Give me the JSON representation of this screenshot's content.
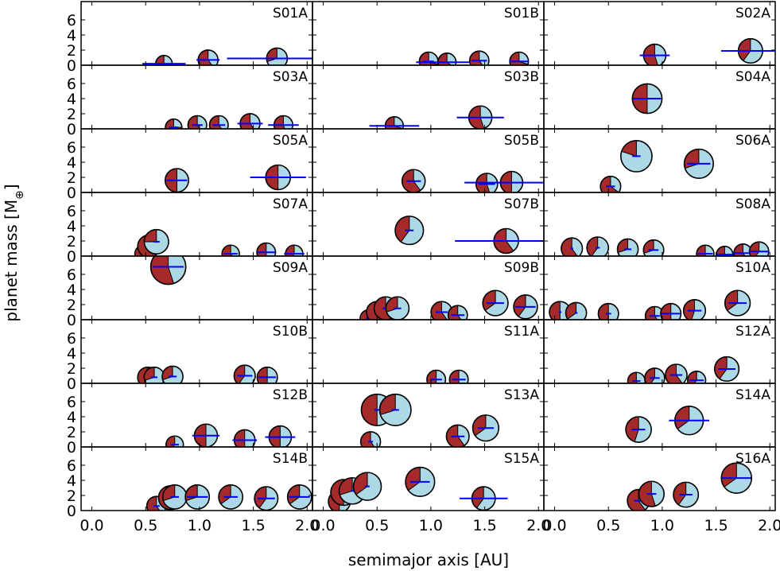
{
  "chart_data": {
    "type": "scatter",
    "title": "",
    "xlabel": "semimajor axis [AU]",
    "ylabel": "planet mass [M",
    "ylabel_symbol": "⊕",
    "ylabel_close": "]",
    "xlim": [
      -0.1,
      2.05
    ],
    "ylim": [
      0,
      8
    ],
    "xticks": [
      0.0,
      0.5,
      1.0,
      1.5,
      2.0
    ],
    "xtick_labels": [
      "0.0",
      "0.5",
      "1.0",
      "1.5",
      "2.0"
    ],
    "yticks": [
      0,
      2,
      4,
      6
    ],
    "ytick_labels": [
      "0",
      "2",
      "4",
      "6"
    ],
    "grid": false,
    "colors": {
      "rock": "#a52a2a",
      "ice": "#add8e6",
      "ecc_line": "#0000ff",
      "outline": "#000000"
    },
    "panels": [
      {
        "label": "S01A",
        "planets": [
          {
            "a": 0.67,
            "m": 0.2,
            "f": 0.75,
            "e": 0.3
          },
          {
            "a": 1.08,
            "m": 0.7,
            "f": 0.6,
            "e": 0.1
          },
          {
            "a": 1.72,
            "m": 0.9,
            "f": 0.3,
            "e": 0.27
          }
        ]
      },
      {
        "label": "S01B",
        "planets": [
          {
            "a": 0.98,
            "m": 0.5,
            "f": 0.7,
            "e": 0.05
          },
          {
            "a": 1.15,
            "m": 0.4,
            "f": 0.65,
            "e": 0.25
          },
          {
            "a": 1.45,
            "m": 0.6,
            "f": 0.6,
            "e": 0.05
          },
          {
            "a": 1.82,
            "m": 0.5,
            "f": 0.7,
            "e": 0.05
          }
        ]
      },
      {
        "label": "S02A",
        "planets": [
          {
            "a": 0.93,
            "m": 1.3,
            "f": 0.55,
            "e": 0.15
          },
          {
            "a": 1.82,
            "m": 1.9,
            "f": 0.4,
            "e": 0.15
          }
        ]
      },
      {
        "label": "S03A",
        "planets": [
          {
            "a": 0.76,
            "m": 0.2,
            "f": 0.75,
            "e": 0.05
          },
          {
            "a": 0.98,
            "m": 0.5,
            "f": 0.6,
            "e": 0.05
          },
          {
            "a": 1.18,
            "m": 0.5,
            "f": 0.6,
            "e": 0.05
          },
          {
            "a": 1.47,
            "m": 0.7,
            "f": 0.6,
            "e": 0.08
          },
          {
            "a": 1.78,
            "m": 0.5,
            "f": 0.55,
            "e": 0.08
          }
        ]
      },
      {
        "label": "S03B",
        "planets": [
          {
            "a": 0.66,
            "m": 0.4,
            "f": 0.7,
            "e": 0.35
          },
          {
            "a": 1.46,
            "m": 1.5,
            "f": 0.55,
            "e": 0.15
          }
        ]
      },
      {
        "label": "S04A",
        "planets": [
          {
            "a": 0.86,
            "m": 4.0,
            "f": 0.5,
            "e": 0.15
          }
        ]
      },
      {
        "label": "S05A",
        "planets": [
          {
            "a": 0.79,
            "m": 1.6,
            "f": 0.5,
            "e": 0.12
          },
          {
            "a": 1.73,
            "m": 2.0,
            "f": 0.5,
            "e": 0.15
          }
        ]
      },
      {
        "label": "S05B",
        "planets": [
          {
            "a": 0.84,
            "m": 1.5,
            "f": 0.6,
            "e": 0.08
          },
          {
            "a": 1.52,
            "m": 1.1,
            "f": 0.55,
            "e": 0.05
          },
          {
            "a": 1.75,
            "m": 1.3,
            "f": 0.5,
            "e": 0.25
          }
        ]
      },
      {
        "label": "S06A",
        "planets": [
          {
            "a": 0.52,
            "m": 0.8,
            "f": 0.65,
            "e": 0.08
          },
          {
            "a": 0.76,
            "m": 4.8,
            "f": 0.2,
            "e": 0.05
          },
          {
            "a": 1.34,
            "m": 3.8,
            "f": 0.3,
            "e": 0.08
          }
        ]
      },
      {
        "label": "S07A",
        "planets": [
          {
            "a": 0.48,
            "m": 0.3,
            "f": 0.7,
            "e": 0.05
          },
          {
            "a": 0.53,
            "m": 1.3,
            "f": 0.6,
            "e": 0.05
          },
          {
            "a": 0.6,
            "m": 1.9,
            "f": 0.25,
            "e": 0.05
          },
          {
            "a": 1.29,
            "m": 0.3,
            "f": 0.6,
            "e": 0.05
          },
          {
            "a": 1.62,
            "m": 0.5,
            "f": 0.5,
            "e": 0.05
          },
          {
            "a": 1.88,
            "m": 0.3,
            "f": 0.4,
            "e": 0.05
          }
        ]
      },
      {
        "label": "S07B",
        "planets": [
          {
            "a": 0.8,
            "m": 3.4,
            "f": 0.4,
            "e": 0.05
          },
          {
            "a": 1.7,
            "m": 2.0,
            "f": 0.6,
            "e": 0.28
          }
        ]
      },
      {
        "label": "S08A",
        "planets": [
          {
            "a": 0.16,
            "m": 1.0,
            "f": 0.6,
            "e": 0.05
          },
          {
            "a": 0.4,
            "m": 1.1,
            "f": 0.4,
            "e": 0.05
          },
          {
            "a": 0.68,
            "m": 0.9,
            "f": 0.3,
            "e": 0.05
          },
          {
            "a": 0.92,
            "m": 0.8,
            "f": 0.3,
            "e": 0.05
          },
          {
            "a": 1.4,
            "m": 0.3,
            "f": 0.5,
            "e": 0.05
          },
          {
            "a": 1.58,
            "m": 0.2,
            "f": 0.4,
            "e": 0.05
          },
          {
            "a": 1.75,
            "m": 0.4,
            "f": 0.6,
            "e": 0.05
          },
          {
            "a": 1.9,
            "m": 0.6,
            "f": 0.4,
            "e": 0.05
          }
        ]
      },
      {
        "label": "S09A",
        "planets": [
          {
            "a": 0.71,
            "m": 7.0,
            "f": 0.55,
            "e": 0.2
          }
        ]
      },
      {
        "label": "S09B",
        "planets": [
          {
            "a": 0.42,
            "m": 0.2,
            "f": 0.7,
            "e": 0.05
          },
          {
            "a": 0.5,
            "m": 1.0,
            "f": 0.6,
            "e": 0.05
          },
          {
            "a": 0.58,
            "m": 1.5,
            "f": 0.6,
            "e": 0.05
          },
          {
            "a": 0.69,
            "m": 1.5,
            "f": 0.3,
            "e": 0.05
          },
          {
            "a": 1.1,
            "m": 1.0,
            "f": 0.6,
            "e": 0.05
          },
          {
            "a": 1.25,
            "m": 0.6,
            "f": 0.6,
            "e": 0.05
          },
          {
            "a": 1.6,
            "m": 2.2,
            "f": 0.35,
            "e": 0.05
          },
          {
            "a": 1.88,
            "m": 1.7,
            "f": 0.4,
            "e": 0.05
          }
        ]
      },
      {
        "label": "S10A",
        "planets": [
          {
            "a": 0.05,
            "m": 1.0,
            "f": 0.5,
            "e": 0.05
          },
          {
            "a": 0.2,
            "m": 0.9,
            "f": 0.35,
            "e": 0.05
          },
          {
            "a": 0.5,
            "m": 0.8,
            "f": 0.5,
            "e": 0.05
          },
          {
            "a": 0.93,
            "m": 0.5,
            "f": 0.6,
            "e": 0.05
          },
          {
            "a": 1.08,
            "m": 0.8,
            "f": 0.5,
            "e": 0.08
          },
          {
            "a": 1.3,
            "m": 1.2,
            "f": 0.45,
            "e": 0.05
          },
          {
            "a": 1.7,
            "m": 2.2,
            "f": 0.35,
            "e": 0.05
          }
        ]
      },
      {
        "label": "S10B",
        "planets": [
          {
            "a": 0.52,
            "m": 0.8,
            "f": 0.6,
            "e": 0.05
          },
          {
            "a": 0.58,
            "m": 0.8,
            "f": 0.3,
            "e": 0.05
          },
          {
            "a": 0.75,
            "m": 0.9,
            "f": 0.3,
            "e": 0.05
          },
          {
            "a": 1.42,
            "m": 1.0,
            "f": 0.4,
            "e": 0.05
          },
          {
            "a": 1.63,
            "m": 0.8,
            "f": 0.5,
            "e": 0.05
          }
        ]
      },
      {
        "label": "S11A",
        "planets": [
          {
            "a": 1.05,
            "m": 0.5,
            "f": 0.5,
            "e": 0.05
          },
          {
            "a": 1.26,
            "m": 0.5,
            "f": 0.5,
            "e": 0.05
          }
        ]
      },
      {
        "label": "S12A",
        "planets": [
          {
            "a": 0.76,
            "m": 0.3,
            "f": 0.55,
            "e": 0.05
          },
          {
            "a": 0.93,
            "m": 0.7,
            "f": 0.4,
            "e": 0.05
          },
          {
            "a": 1.13,
            "m": 1.1,
            "f": 0.6,
            "e": 0.05
          },
          {
            "a": 1.32,
            "m": 0.4,
            "f": 0.4,
            "e": 0.05
          },
          {
            "a": 1.6,
            "m": 1.9,
            "f": 0.4,
            "e": 0.05
          }
        ]
      },
      {
        "label": "S12B",
        "planets": [
          {
            "a": 0.77,
            "m": 0.3,
            "f": 0.4,
            "e": 0.05
          },
          {
            "a": 1.06,
            "m": 1.5,
            "f": 0.5,
            "e": 0.12
          },
          {
            "a": 1.42,
            "m": 0.9,
            "f": 0.5,
            "e": 0.08
          },
          {
            "a": 1.75,
            "m": 1.3,
            "f": 0.5,
            "e": 0.08
          }
        ]
      },
      {
        "label": "S13A",
        "planets": [
          {
            "a": 0.44,
            "m": 0.7,
            "f": 0.6,
            "e": 0.05
          },
          {
            "a": 0.5,
            "m": 4.9,
            "f": 0.5,
            "e": 0.05
          },
          {
            "a": 0.67,
            "m": 4.9,
            "f": 0.3,
            "e": 0.05
          },
          {
            "a": 1.25,
            "m": 1.4,
            "f": 0.6,
            "e": 0.05
          },
          {
            "a": 1.51,
            "m": 2.5,
            "f": 0.35,
            "e": 0.05
          }
        ]
      },
      {
        "label": "S14A",
        "planets": [
          {
            "a": 0.78,
            "m": 2.3,
            "f": 0.45,
            "e": 0.08
          },
          {
            "a": 1.25,
            "m": 3.5,
            "f": 0.35,
            "e": 0.15
          }
        ]
      },
      {
        "label": "S14B",
        "planets": [
          {
            "a": 0.6,
            "m": 0.6,
            "f": 0.6,
            "e": 0.05
          },
          {
            "a": 0.73,
            "m": 1.7,
            "f": 0.55,
            "e": 0.05
          },
          {
            "a": 0.77,
            "m": 1.8,
            "f": 0.3,
            "e": 0.05
          },
          {
            "a": 0.98,
            "m": 1.8,
            "f": 0.3,
            "e": 0.1
          },
          {
            "a": 1.29,
            "m": 1.8,
            "f": 0.35,
            "e": 0.05
          },
          {
            "a": 1.62,
            "m": 1.6,
            "f": 0.4,
            "e": 0.05
          },
          {
            "a": 1.93,
            "m": 1.8,
            "f": 0.35,
            "e": 0.05
          }
        ]
      },
      {
        "label": "S15A",
        "planets": [
          {
            "a": 0.15,
            "m": 1.2,
            "f": 0.5,
            "e": 0.05
          },
          {
            "a": 0.19,
            "m": 2.4,
            "f": 0.5,
            "e": 0.05
          },
          {
            "a": 0.27,
            "m": 2.6,
            "f": 0.3,
            "e": 0.05
          },
          {
            "a": 0.41,
            "m": 3.2,
            "f": 0.35,
            "e": 0.05
          },
          {
            "a": 0.9,
            "m": 3.8,
            "f": 0.35,
            "e": 0.1
          },
          {
            "a": 1.49,
            "m": 1.6,
            "f": 0.4,
            "e": 0.15
          }
        ]
      },
      {
        "label": "S16A",
        "planets": [
          {
            "a": 0.78,
            "m": 1.3,
            "f": 0.6,
            "e": 0.05
          },
          {
            "a": 0.9,
            "m": 2.2,
            "f": 0.55,
            "e": 0.05
          },
          {
            "a": 1.22,
            "m": 2.1,
            "f": 0.4,
            "e": 0.05
          },
          {
            "a": 1.69,
            "m": 4.3,
            "f": 0.35,
            "e": 0.08
          }
        ]
      }
    ]
  }
}
